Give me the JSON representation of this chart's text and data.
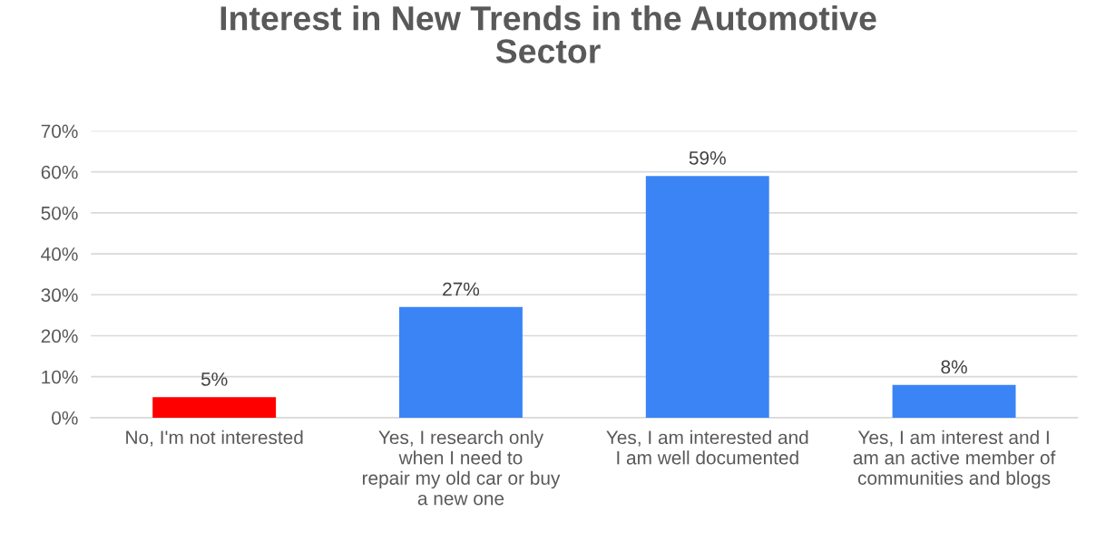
{
  "chart_data": {
    "type": "bar",
    "title": "Interest in New Trends in the Automotive\nSector",
    "categories": [
      "No, I'm not interested",
      "Yes, I research only\nwhen I need to\nrepair my old car or buy\na new one",
      "Yes, I am interested and\nI am well documented",
      "Yes, I am interest and I\nam an active member of\ncommunities and blogs"
    ],
    "values": [
      5,
      27,
      59,
      8
    ],
    "colors": [
      "#ff0000",
      "#3a84f5",
      "#3a84f5",
      "#3a84f5"
    ],
    "value_labels": [
      "5%",
      "27%",
      "59%",
      "8%"
    ],
    "ylim": [
      0,
      70
    ],
    "yticks": [
      {
        "value": 0,
        "label": "0%"
      },
      {
        "value": 10,
        "label": "10%"
      },
      {
        "value": 20,
        "label": "20%"
      },
      {
        "value": 30,
        "label": "30%"
      },
      {
        "value": 40,
        "label": "40%"
      },
      {
        "value": 50,
        "label": "50%"
      },
      {
        "value": 60,
        "label": "60%"
      },
      {
        "value": 70,
        "label": "70%"
      }
    ],
    "grid": "y"
  }
}
